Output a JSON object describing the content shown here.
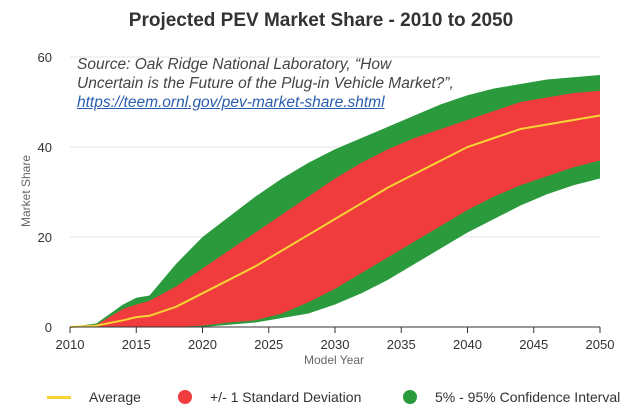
{
  "chart_data": {
    "type": "area",
    "title": "Projected PEV Market Share - 2010 to 2050",
    "xlabel": "Model Year",
    "ylabel": "Market Share",
    "xlim": [
      2010,
      2050
    ],
    "ylim": [
      0,
      60
    ],
    "x_ticks": [
      "2010",
      "2015",
      "2020",
      "2025",
      "2030",
      "2035",
      "2040",
      "2045",
      "2050"
    ],
    "y_ticks": [
      "0",
      "20",
      "40",
      "60"
    ],
    "grid": true,
    "legend_position": "bottom",
    "x": [
      2010,
      2012,
      2014,
      2015,
      2016,
      2018,
      2020,
      2022,
      2024,
      2026,
      2028,
      2030,
      2032,
      2034,
      2036,
      2038,
      2040,
      2042,
      2044,
      2046,
      2048,
      2050
    ],
    "series": [
      {
        "name": "Average",
        "color": "#f7d434",
        "values": [
          0,
          0.3,
          1.5,
          2.2,
          2.5,
          4.5,
          7.5,
          10.5,
          13.5,
          17,
          20.5,
          24,
          27.5,
          31,
          34,
          37,
          40,
          42,
          44,
          45,
          46,
          47
        ]
      },
      {
        "name": "+/- 1 Standard Deviation",
        "color": "#f03c3c",
        "lower": [
          0,
          0,
          0,
          0,
          0,
          0,
          0.3,
          1,
          1.5,
          3,
          5.5,
          8.5,
          12,
          15.5,
          19,
          22.5,
          26,
          29,
          31.5,
          33.5,
          35.5,
          37
        ],
        "upper": [
          0,
          0.5,
          4,
          5,
          5.8,
          9,
          13,
          17,
          21,
          25,
          29,
          33,
          36.5,
          39.5,
          42,
          44,
          46,
          48,
          50,
          51,
          52,
          52.5
        ]
      },
      {
        "name": "5% - 95% Confidence Interval",
        "color": "#2b9a3c",
        "lower": [
          0,
          0,
          0,
          0,
          0,
          0,
          0,
          0.5,
          1,
          2,
          3,
          5,
          7.5,
          10.5,
          14,
          17.5,
          21,
          24,
          27,
          29.5,
          31.5,
          33
        ],
        "upper": [
          0,
          0.8,
          5,
          6.5,
          7,
          14,
          20,
          24.5,
          29,
          33,
          36.5,
          39.5,
          42,
          44.5,
          47,
          49.5,
          51.5,
          53,
          54,
          55,
          55.5,
          56
        ]
      }
    ],
    "annotation": {
      "text": "Source: Oak Ridge National Laboratory, “How Uncertain is the Future of the Plug-in Vehicle Market?”, ",
      "link": "https://teem.ornl.gov/pev-market-share.shtml"
    }
  },
  "legend": {
    "items": [
      {
        "label": "Average",
        "color": "#f7d434",
        "symbol": "line"
      },
      {
        "label": "+/- 1 Standard Deviation",
        "color": "#f03c3c",
        "symbol": "dot"
      },
      {
        "label": "5% - 95% Confidence Interval",
        "color": "#2b9a3c",
        "symbol": "dot"
      }
    ]
  }
}
